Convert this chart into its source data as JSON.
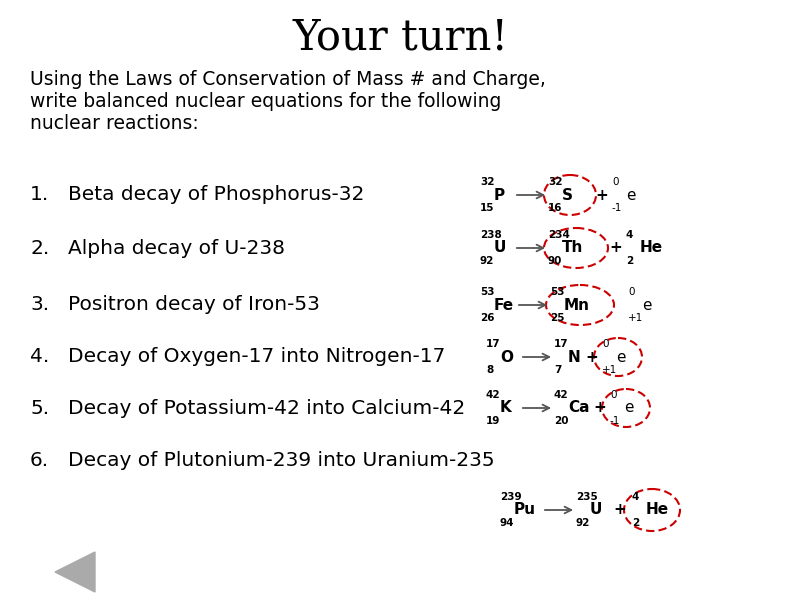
{
  "title": "Your turn!",
  "subtitle": "Using the Laws of Conservation of Mass # and Charge,\nwrite balanced nuclear equations for the following\nnuclear reactions:",
  "items": [
    "Beta decay of Phosphorus-32",
    "Alpha decay of U-238",
    "Positron decay of Iron-53",
    "Decay of Oxygen-17 into Nitrogen-17",
    "Decay of Potassium-42 into Calcium-42",
    "Decay of Plutonium-239 into Uranium-235"
  ],
  "bg_color": "#ffffff",
  "text_color": "#000000",
  "circle_color": "#cc0000",
  "arrow_color": "#555555",
  "title_fontsize": 30,
  "body_fontsize": 13.5,
  "eq_fontsize": 11,
  "eq_sub_fontsize": 7.5
}
